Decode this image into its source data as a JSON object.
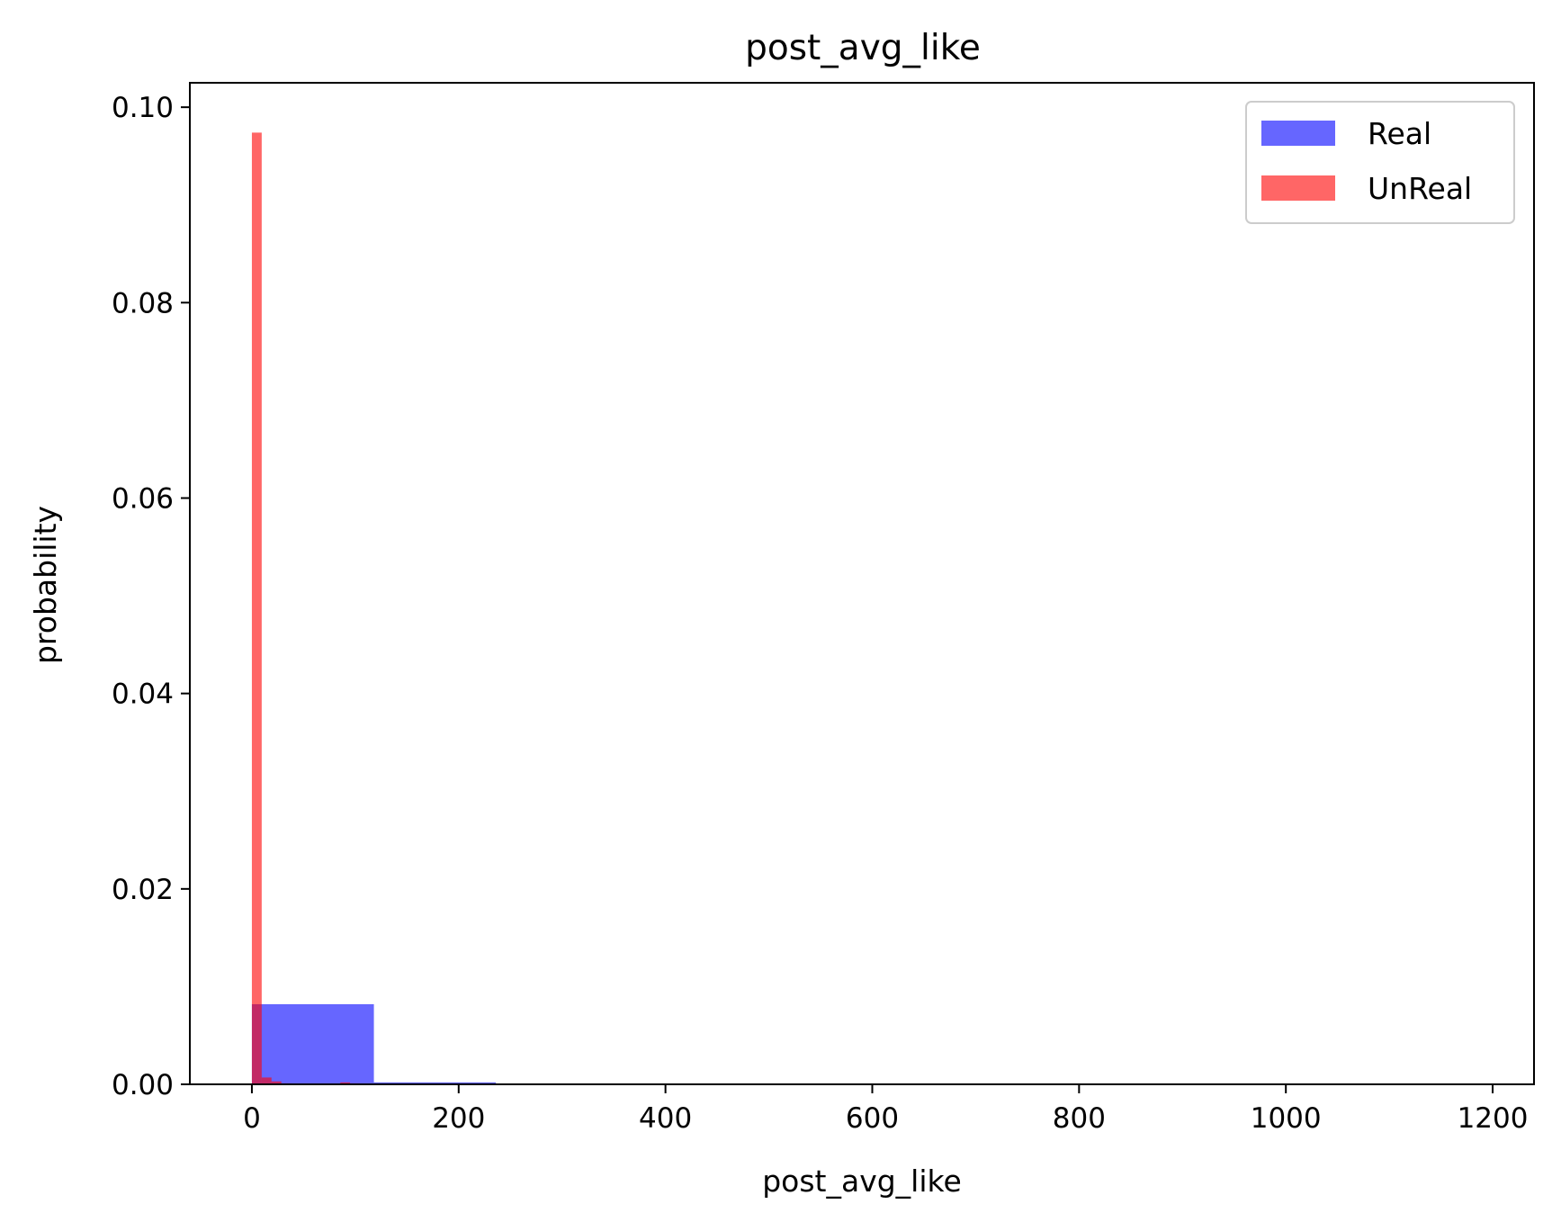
{
  "chart_data": {
    "type": "bar",
    "title": "post_avg_like",
    "xlabel": "post_avg_like",
    "ylabel": "probability",
    "xlim": [
      -60,
      1240
    ],
    "ylim": [
      0,
      0.1025
    ],
    "xticks": [
      0,
      200,
      400,
      600,
      800,
      1000,
      1200
    ],
    "xtick_labels": [
      "0",
      "200",
      "400",
      "600",
      "800",
      "1000",
      "1200"
    ],
    "yticks": [
      0.0,
      0.02,
      0.04,
      0.06,
      0.08,
      0.1
    ],
    "ytick_labels": [
      "0.00",
      "0.02",
      "0.04",
      "0.06",
      "0.08",
      "0.10"
    ],
    "grid": false,
    "legend_position": "top-right",
    "series": [
      {
        "name": "Real",
        "color": "#0000ff",
        "opacity": 0.6,
        "bins": [
          {
            "x0": 0,
            "x1": 118,
            "value": 0.0082
          },
          {
            "x0": 118,
            "x1": 236,
            "value": 0.0002
          }
        ]
      },
      {
        "name": "UnReal",
        "color": "#ff0000",
        "opacity": 0.6,
        "bins": [
          {
            "x0": 0,
            "x1": 9.5,
            "value": 0.0974
          },
          {
            "x0": 9.5,
            "x1": 19,
            "value": 0.0007
          },
          {
            "x0": 19,
            "x1": 28.5,
            "value": 0.0003
          },
          {
            "x0": 28.5,
            "x1": 38,
            "value": 0.0001
          },
          {
            "x0": 85.5,
            "x1": 95,
            "value": 0.0002
          },
          {
            "x0": 95,
            "x1": 104.5,
            "value": 0.0001
          }
        ]
      }
    ]
  }
}
